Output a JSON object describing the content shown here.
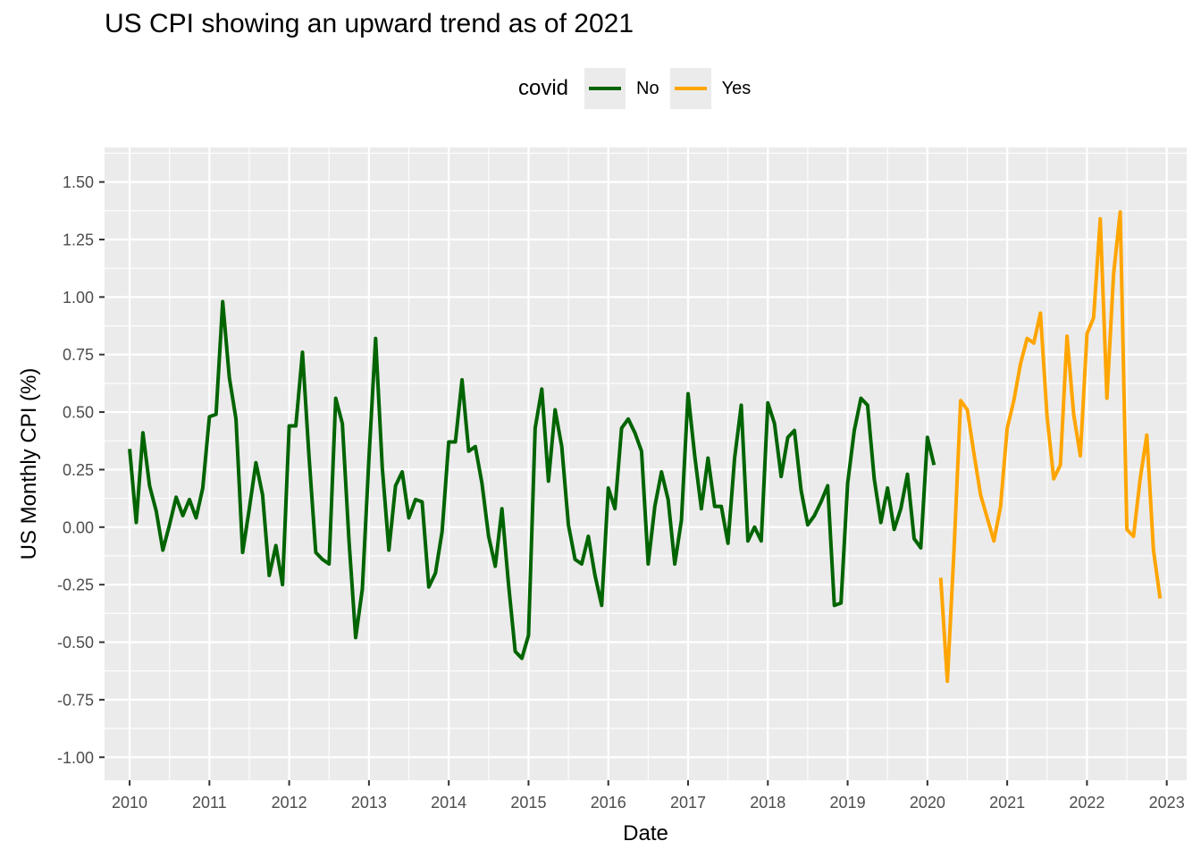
{
  "chart_data": {
    "type": "line",
    "title": "US CPI showing an upward trend as of 2021",
    "xlabel": "Date",
    "ylabel": "US Monthly CPI (%)",
    "xlim": [
      "2009-09-08",
      "2023-04-01"
    ],
    "ylim": [
      -1.1,
      1.65
    ],
    "x_ticks": [
      "2010",
      "2011",
      "2012",
      "2013",
      "2014",
      "2015",
      "2016",
      "2017",
      "2018",
      "2019",
      "2020",
      "2021",
      "2022",
      "2023"
    ],
    "y_ticks": [
      "-1.00",
      "-0.75",
      "-0.50",
      "-0.25",
      "0.00",
      "0.25",
      "0.50",
      "0.75",
      "1.00",
      "1.25",
      "1.50"
    ],
    "grid": true,
    "legend": {
      "title": "covid",
      "position": "top"
    },
    "series": [
      {
        "name": "No",
        "color": "#006400",
        "start": "2010-01",
        "values": [
          0.34,
          0.02,
          0.41,
          0.18,
          0.07,
          -0.1,
          0.01,
          0.13,
          0.05,
          0.12,
          0.04,
          0.17,
          0.48,
          0.49,
          0.98,
          0.65,
          0.47,
          -0.11,
          0.08,
          0.28,
          0.14,
          -0.21,
          -0.08,
          -0.25,
          0.44,
          0.44,
          0.76,
          0.3,
          -0.11,
          -0.14,
          -0.16,
          0.56,
          0.45,
          -0.06,
          -0.48,
          -0.27,
          0.3,
          0.82,
          0.26,
          -0.1,
          0.18,
          0.24,
          0.04,
          0.12,
          0.11,
          -0.26,
          -0.2,
          -0.02,
          0.37,
          0.37,
          0.64,
          0.33,
          0.35,
          0.19,
          -0.04,
          -0.17,
          0.08,
          -0.25,
          -0.54,
          -0.57,
          -0.47,
          0.43,
          0.6,
          0.2,
          0.51,
          0.35,
          0.01,
          -0.14,
          -0.16,
          -0.04,
          -0.21,
          -0.34,
          0.17,
          0.08,
          0.43,
          0.47,
          0.41,
          0.33,
          -0.16,
          0.09,
          0.24,
          0.12,
          -0.16,
          0.03,
          0.58,
          0.31,
          0.08,
          0.3,
          0.09,
          0.09,
          -0.07,
          0.3,
          0.53,
          -0.06,
          0.0,
          -0.06,
          0.54,
          0.45,
          0.22,
          0.39,
          0.42,
          0.16,
          0.01,
          0.05,
          0.11,
          0.18,
          -0.34,
          -0.33,
          0.19,
          0.42,
          0.56,
          0.53,
          0.21,
          0.02,
          0.17,
          -0.01,
          0.08,
          0.23,
          -0.05,
          -0.09,
          0.39,
          0.27
        ]
      },
      {
        "name": "Yes",
        "color": "#FFA500",
        "start": "2020-03",
        "values": [
          -0.22,
          -0.67,
          -0.1,
          0.55,
          0.51,
          0.32,
          0.14,
          0.04,
          -0.06,
          0.09,
          0.43,
          0.55,
          0.71,
          0.82,
          0.8,
          0.93,
          0.48,
          0.21,
          0.27,
          0.83,
          0.49,
          0.31,
          0.84,
          0.91,
          1.34,
          0.56,
          1.1,
          1.37,
          -0.01,
          -0.04,
          0.21,
          0.4,
          -0.1,
          -0.31
        ]
      }
    ]
  }
}
